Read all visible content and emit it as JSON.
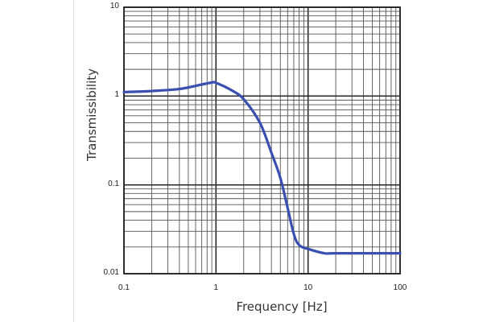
{
  "chart_data": {
    "type": "line",
    "title": "",
    "xlabel": "Frequency [Hz]",
    "ylabel": "Transmissibility",
    "xscale": "log",
    "yscale": "log",
    "xlim": [
      0.1,
      100
    ],
    "ylim": [
      0.01,
      10
    ],
    "grid": true,
    "legend": null,
    "x_tick_labels": [
      "0.1",
      "1",
      "10",
      "100"
    ],
    "y_tick_labels": [
      "10",
      "1",
      "0.1",
      "0.01"
    ],
    "series": [
      {
        "name": "Transmissibility",
        "color": "#3a4fb0",
        "x": [
          0.1,
          0.2,
          0.4,
          0.7,
          0.9,
          1.0,
          1.5,
          2.0,
          3.0,
          4.0,
          5.0,
          6.0,
          7.0,
          8.0,
          10,
          15,
          20,
          100
        ],
        "y": [
          1.11,
          1.14,
          1.2,
          1.35,
          1.42,
          1.41,
          1.15,
          0.92,
          0.5,
          0.23,
          0.12,
          0.055,
          0.028,
          0.021,
          0.019,
          0.017,
          0.017,
          0.017
        ]
      }
    ]
  },
  "axes": {
    "xlabel": "Frequency [Hz]",
    "ylabel": "Transmissibility",
    "x_ticks": [
      {
        "label": "0.1",
        "value": 0.1
      },
      {
        "label": "1",
        "value": 1
      },
      {
        "label": "10",
        "value": 10
      },
      {
        "label": "100",
        "value": 100
      }
    ],
    "y_ticks": [
      {
        "label": "10",
        "value": 10
      },
      {
        "label": "1",
        "value": 1
      },
      {
        "label": "0.1",
        "value": 0.1
      },
      {
        "label": "0.01",
        "value": 0.01
      }
    ]
  },
  "style": {
    "line_color": "#3a4fb0",
    "grid_color": "#555555",
    "frame_color": "#222222"
  }
}
